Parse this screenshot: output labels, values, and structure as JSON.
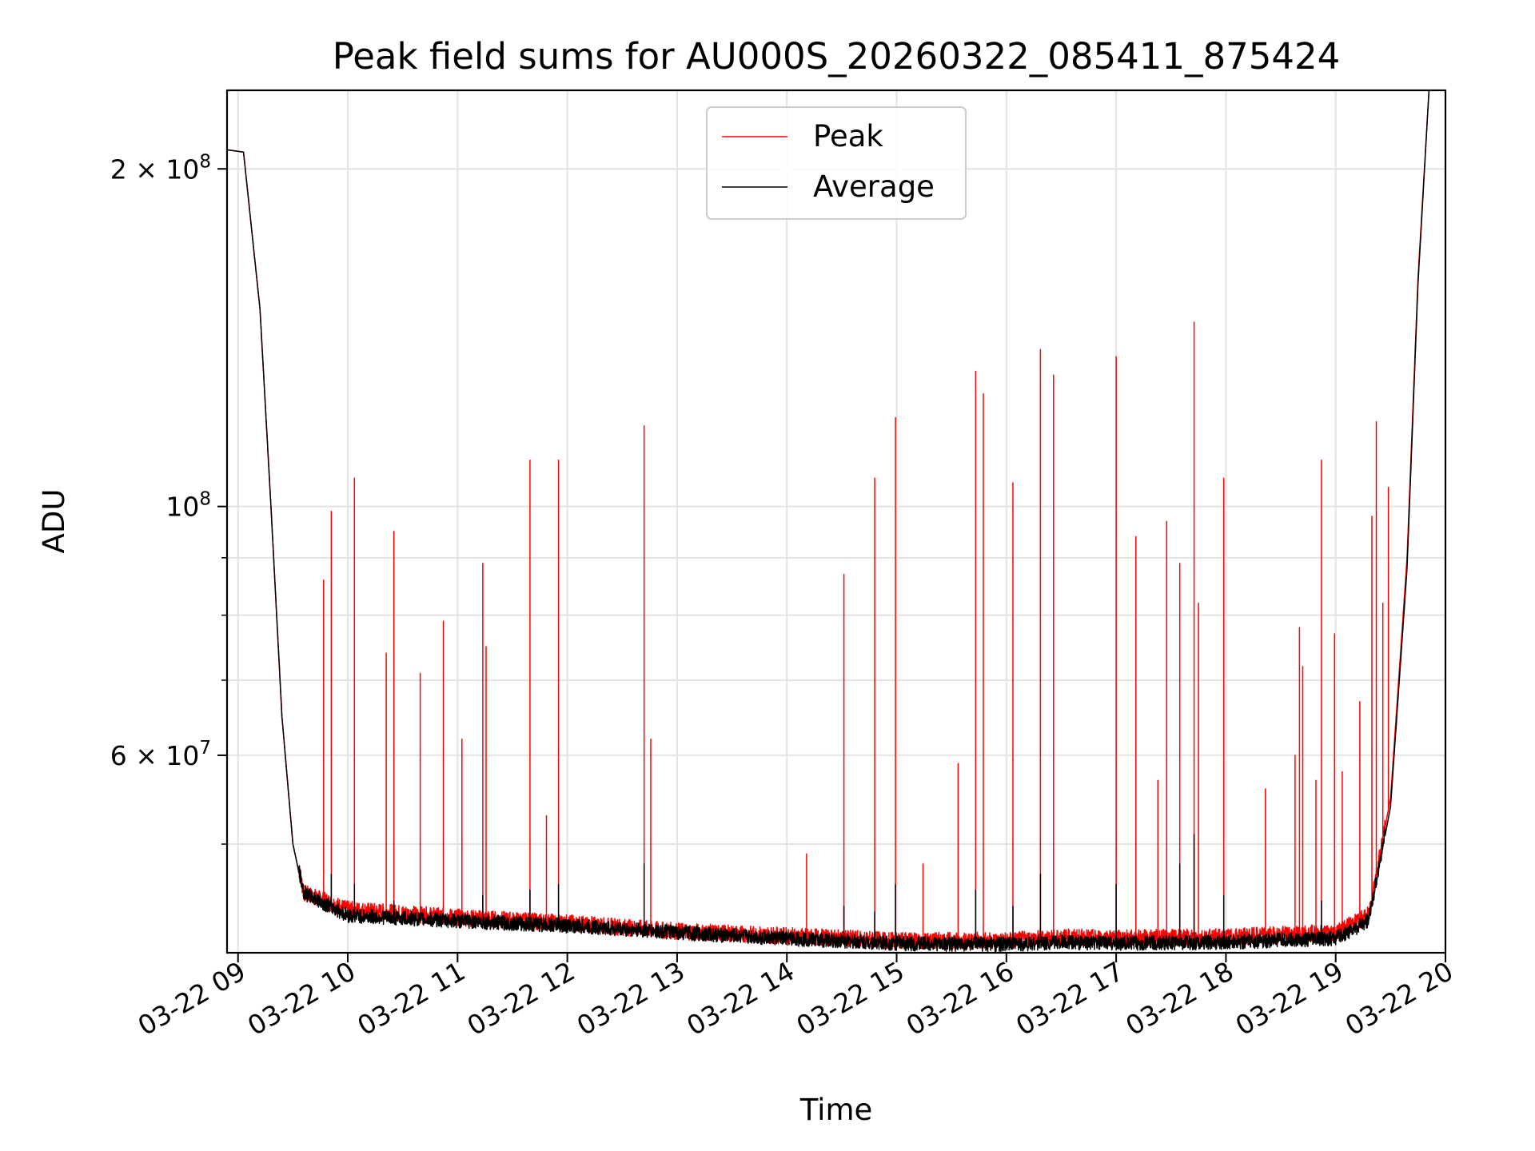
{
  "chart_data": {
    "type": "line",
    "title": "Peak field sums for AU000S_20260322_085411_875424",
    "xlabel": "Time",
    "ylabel": "ADU",
    "yscale": "log",
    "ylim": [
      40000000,
      235000000
    ],
    "xlim_hours": [
      8.9,
      20.0
    ],
    "x_ticks": [
      {
        "hour": 9,
        "label": "03-22 09"
      },
      {
        "hour": 10,
        "label": "03-22 10"
      },
      {
        "hour": 11,
        "label": "03-22 11"
      },
      {
        "hour": 12,
        "label": "03-22 12"
      },
      {
        "hour": 13,
        "label": "03-22 13"
      },
      {
        "hour": 14,
        "label": "03-22 14"
      },
      {
        "hour": 15,
        "label": "03-22 15"
      },
      {
        "hour": 16,
        "label": "03-22 16"
      },
      {
        "hour": 17,
        "label": "03-22 17"
      },
      {
        "hour": 18,
        "label": "03-22 18"
      },
      {
        "hour": 19,
        "label": "03-22 19"
      },
      {
        "hour": 20,
        "label": "03-22 20"
      }
    ],
    "y_ticks": [
      {
        "value": 200000000,
        "mantissa": "2",
        "exponent": "8"
      },
      {
        "value": 100000000,
        "mantissa": "",
        "exponent": "8"
      },
      {
        "value": 60000000,
        "mantissa": "6",
        "exponent": "7"
      }
    ],
    "y_minor_ticks": [
      50000000,
      70000000,
      80000000,
      90000000
    ],
    "grid": true,
    "legend_position": "top-center",
    "series": [
      {
        "name": "Peak",
        "color": "#ff0000",
        "baseline": [
          [
            8.9,
            208000000
          ],
          [
            9.05,
            207000000
          ],
          [
            9.2,
            150000000
          ],
          [
            9.3,
            100000000
          ],
          [
            9.4,
            65000000
          ],
          [
            9.5,
            50000000
          ],
          [
            9.6,
            45000000
          ],
          [
            10.0,
            43500000
          ],
          [
            11.0,
            42800000
          ],
          [
            12.0,
            42300000
          ],
          [
            13.0,
            41600000
          ],
          [
            14.0,
            41200000
          ],
          [
            15.0,
            40800000
          ],
          [
            16.0,
            40800000
          ],
          [
            16.5,
            41100000
          ],
          [
            17.0,
            41000000
          ],
          [
            18.0,
            41100000
          ],
          [
            19.0,
            41500000
          ],
          [
            19.3,
            43000000
          ],
          [
            19.5,
            55000000
          ],
          [
            19.65,
            90000000
          ],
          [
            19.75,
            160000000
          ],
          [
            19.85,
            235000000
          ]
        ],
        "spikes": [
          [
            9.78,
            86000000
          ],
          [
            9.85,
            99000000
          ],
          [
            10.06,
            106000000
          ],
          [
            10.35,
            74000000
          ],
          [
            10.42,
            95000000
          ],
          [
            10.66,
            71000000
          ],
          [
            10.87,
            79000000
          ],
          [
            11.04,
            62000000
          ],
          [
            11.23,
            89000000
          ],
          [
            11.26,
            75000000
          ],
          [
            11.66,
            110000000
          ],
          [
            11.81,
            53000000
          ],
          [
            11.92,
            110000000
          ],
          [
            12.7,
            118000000
          ],
          [
            12.76,
            62000000
          ],
          [
            14.18,
            49000000
          ],
          [
            14.52,
            87000000
          ],
          [
            14.8,
            106000000
          ],
          [
            14.99,
            120000000
          ],
          [
            15.24,
            48000000
          ],
          [
            15.56,
            59000000
          ],
          [
            15.72,
            132000000
          ],
          [
            15.79,
            126000000
          ],
          [
            16.06,
            105000000
          ],
          [
            16.31,
            138000000
          ],
          [
            16.43,
            131000000
          ],
          [
            17.0,
            136000000
          ],
          [
            17.18,
            94000000
          ],
          [
            17.38,
            57000000
          ],
          [
            17.46,
            97000000
          ],
          [
            17.58,
            89000000
          ],
          [
            17.71,
            146000000
          ],
          [
            17.75,
            82000000
          ],
          [
            17.98,
            106000000
          ],
          [
            18.36,
            56000000
          ],
          [
            18.63,
            60000000
          ],
          [
            18.67,
            78000000
          ],
          [
            18.7,
            72000000
          ],
          [
            18.82,
            57000000
          ],
          [
            18.87,
            110000000
          ],
          [
            18.99,
            77000000
          ],
          [
            19.06,
            58000000
          ],
          [
            19.22,
            67000000
          ],
          [
            19.33,
            98000000
          ],
          [
            19.37,
            119000000
          ],
          [
            19.43,
            82000000
          ],
          [
            19.48,
            104000000
          ]
        ]
      },
      {
        "name": "Average",
        "color": "#000000",
        "baseline": [
          [
            8.9,
            208000000
          ],
          [
            9.05,
            207000000
          ],
          [
            9.2,
            150000000
          ],
          [
            9.3,
            100000000
          ],
          [
            9.4,
            65000000
          ],
          [
            9.5,
            50000000
          ],
          [
            9.6,
            45000000
          ],
          [
            10.0,
            43000000
          ],
          [
            11.0,
            42500000
          ],
          [
            12.0,
            42100000
          ],
          [
            13.0,
            41500000
          ],
          [
            14.0,
            41000000
          ],
          [
            15.0,
            40600000
          ],
          [
            16.0,
            40500000
          ],
          [
            16.5,
            40700000
          ],
          [
            17.0,
            40600000
          ],
          [
            18.0,
            40700000
          ],
          [
            19.0,
            41000000
          ],
          [
            19.3,
            42500000
          ],
          [
            19.5,
            54000000
          ],
          [
            19.65,
            88000000
          ],
          [
            19.75,
            158000000
          ],
          [
            19.85,
            235000000
          ]
        ],
        "spikes": [
          [
            9.85,
            47000000
          ],
          [
            10.06,
            46000000
          ],
          [
            10.42,
            44500000
          ],
          [
            11.23,
            45000000
          ],
          [
            11.66,
            45500000
          ],
          [
            11.92,
            46000000
          ],
          [
            12.7,
            48000000
          ],
          [
            14.52,
            44000000
          ],
          [
            14.8,
            43500000
          ],
          [
            14.99,
            46000000
          ],
          [
            15.72,
            45500000
          ],
          [
            16.06,
            44000000
          ],
          [
            16.31,
            47000000
          ],
          [
            17.0,
            46000000
          ],
          [
            17.58,
            48000000
          ],
          [
            17.71,
            51000000
          ],
          [
            17.98,
            45000000
          ],
          [
            18.87,
            44500000
          ]
        ]
      }
    ]
  }
}
